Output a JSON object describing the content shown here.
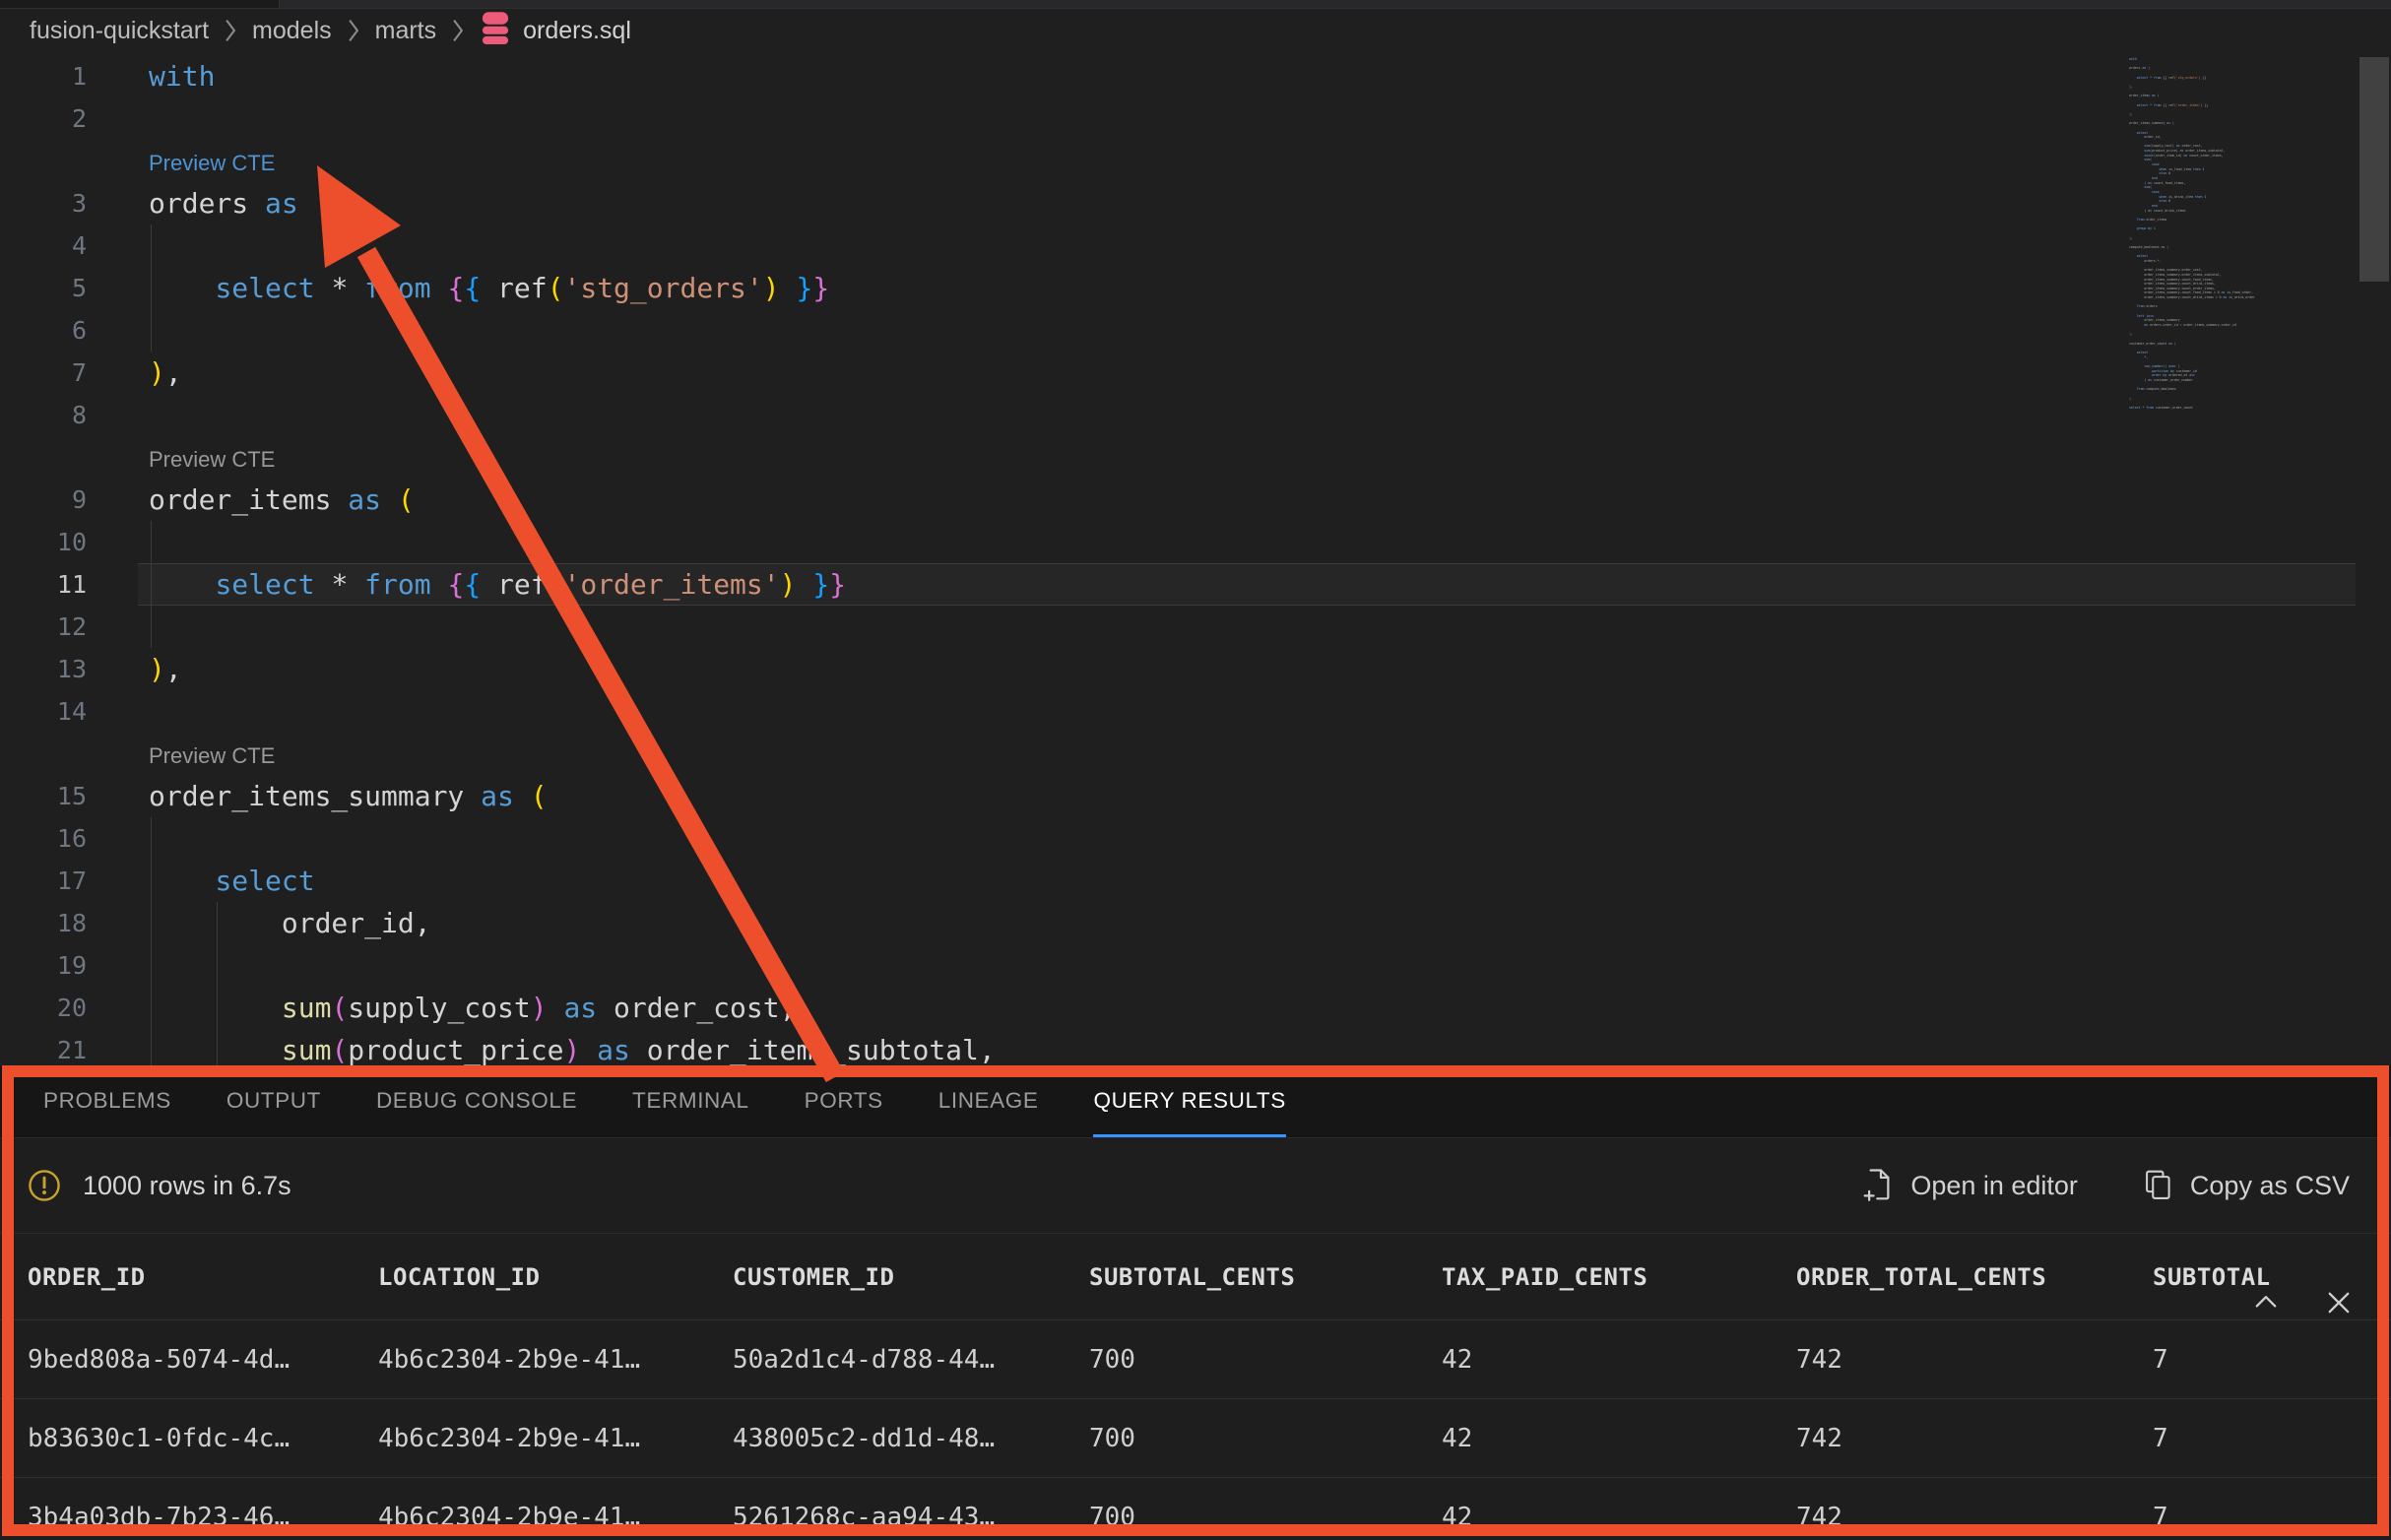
{
  "breadcrumb": {
    "segments": [
      "fusion-quickstart",
      "models",
      "marts"
    ],
    "file": {
      "icon": "database-icon",
      "name": "orders.sql"
    }
  },
  "editor": {
    "codelens_label": "Preview CTE",
    "rows": [
      {
        "type": "code",
        "n": "1",
        "tokens": [
          [
            "with",
            "kw"
          ]
        ]
      },
      {
        "type": "code",
        "n": "2",
        "tokens": []
      },
      {
        "type": "lens",
        "hover": true
      },
      {
        "type": "code",
        "n": "3",
        "tokens": [
          [
            "orders ",
            "id"
          ],
          [
            "as",
            "kw"
          ],
          [
            " ",
            "id"
          ],
          [
            "(",
            "b1"
          ]
        ]
      },
      {
        "type": "code",
        "n": "4",
        "guides": [
          0
        ],
        "tokens": []
      },
      {
        "type": "code",
        "n": "5",
        "guides": [
          0
        ],
        "tokens": [
          [
            "    ",
            "id"
          ],
          [
            "select",
            "kw"
          ],
          [
            " * ",
            "id"
          ],
          [
            "from",
            "kw"
          ],
          [
            " ",
            "id"
          ],
          [
            "{",
            "b2"
          ],
          [
            "{",
            "b3"
          ],
          [
            " ref",
            "id"
          ],
          [
            "(",
            "b1"
          ],
          [
            "'stg_orders'",
            "str"
          ],
          [
            ")",
            "b1"
          ],
          [
            " ",
            "id"
          ],
          [
            "}",
            "b3"
          ],
          [
            "}",
            "b2"
          ]
        ]
      },
      {
        "type": "code",
        "n": "6",
        "guides": [
          0
        ],
        "tokens": []
      },
      {
        "type": "code",
        "n": "7",
        "tokens": [
          [
            ")",
            "b1"
          ],
          [
            ",",
            "id"
          ]
        ]
      },
      {
        "type": "code",
        "n": "8",
        "tokens": []
      },
      {
        "type": "lens"
      },
      {
        "type": "code",
        "n": "9",
        "tokens": [
          [
            "order_items ",
            "id"
          ],
          [
            "as",
            "kw"
          ],
          [
            " ",
            "id"
          ],
          [
            "(",
            "b1"
          ]
        ]
      },
      {
        "type": "code",
        "n": "10",
        "guides": [
          0
        ],
        "tokens": []
      },
      {
        "type": "code",
        "n": "11",
        "current": true,
        "guides": [
          0
        ],
        "tokens": [
          [
            "    ",
            "id"
          ],
          [
            "select",
            "kw"
          ],
          [
            " * ",
            "id"
          ],
          [
            "from",
            "kw"
          ],
          [
            " ",
            "id"
          ],
          [
            "{",
            "b2"
          ],
          [
            "{",
            "b3"
          ],
          [
            " ref",
            "id"
          ],
          [
            "(",
            "b1"
          ],
          [
            "'order_items'",
            "str"
          ],
          [
            ")",
            "b1"
          ],
          [
            " ",
            "id"
          ],
          [
            "}",
            "b3"
          ],
          [
            "}",
            "b2"
          ]
        ]
      },
      {
        "type": "code",
        "n": "12",
        "guides": [
          0
        ],
        "tokens": []
      },
      {
        "type": "code",
        "n": "13",
        "tokens": [
          [
            ")",
            "b1"
          ],
          [
            ",",
            "id"
          ]
        ]
      },
      {
        "type": "code",
        "n": "14",
        "tokens": []
      },
      {
        "type": "lens"
      },
      {
        "type": "code",
        "n": "15",
        "tokens": [
          [
            "order_items_summary ",
            "id"
          ],
          [
            "as",
            "kw"
          ],
          [
            " ",
            "id"
          ],
          [
            "(",
            "b1"
          ]
        ]
      },
      {
        "type": "code",
        "n": "16",
        "guides": [
          0
        ],
        "tokens": []
      },
      {
        "type": "code",
        "n": "17",
        "guides": [
          0
        ],
        "tokens": [
          [
            "    ",
            "id"
          ],
          [
            "select",
            "kw"
          ]
        ]
      },
      {
        "type": "code",
        "n": "18",
        "guides": [
          0,
          4
        ],
        "tokens": [
          [
            "        order_id,",
            "id"
          ]
        ]
      },
      {
        "type": "code",
        "n": "19",
        "guides": [
          0,
          4
        ],
        "tokens": []
      },
      {
        "type": "code",
        "n": "20",
        "guides": [
          0,
          4
        ],
        "tokens": [
          [
            "        ",
            "id"
          ],
          [
            "sum",
            "fn"
          ],
          [
            "(",
            "b2"
          ],
          [
            "supply_cost",
            "id"
          ],
          [
            ")",
            "b2"
          ],
          [
            " ",
            "id"
          ],
          [
            "as",
            "kw"
          ],
          [
            " order_cost,",
            "id"
          ]
        ]
      },
      {
        "type": "code",
        "n": "21",
        "guides": [
          0,
          4
        ],
        "tokens": [
          [
            "        ",
            "id"
          ],
          [
            "sum",
            "fn"
          ],
          [
            "(",
            "b2"
          ],
          [
            "product_price",
            "id"
          ],
          [
            ")",
            "b2"
          ],
          [
            " ",
            "id"
          ],
          [
            "as",
            "kw"
          ],
          [
            " order_items_subtotal,",
            "id"
          ]
        ]
      }
    ],
    "minimap_lines": [
      "with",
      "",
      "orders as (",
      "",
      "    select * from {{ ref('stg_orders') }}",
      "",
      "),",
      "",
      "order_items as (",
      "",
      "    select * from {{ ref('order_items') }}",
      "",
      "),",
      "",
      "order_items_summary as (",
      "",
      "    select",
      "        order_id,",
      "",
      "        sum(supply_cost) as order_cost,",
      "        sum(product_price) as order_items_subtotal,",
      "        count(order_item_id) as count_order_items,",
      "        sum(",
      "            case",
      "                when is_food_item then 1",
      "                else 0",
      "            end",
      "        ) as count_food_items,",
      "        sum(",
      "            case",
      "                when is_drink_item then 1",
      "                else 0",
      "            end",
      "        ) as count_drink_items",
      "",
      "    from order_items",
      "",
      "    group by 1",
      "",
      "),",
      "",
      "compute_booleans as (",
      "",
      "    select",
      "        orders.*,",
      "",
      "        order_items_summary.order_cost,",
      "        order_items_summary.order_items_subtotal,",
      "        order_items_summary.count_food_items,",
      "        order_items_summary.count_drink_items,",
      "        order_items_summary.count_order_items,",
      "        order_items_summary.count_food_items > 0 as is_food_order,",
      "        order_items_summary.count_drink_items > 0 as is_drink_order",
      "",
      "    from orders",
      "",
      "    left join",
      "        order_items_summary",
      "        on orders.order_id = order_items_summary.order_id",
      "",
      "),",
      "",
      "customer_order_count as (",
      "",
      "    select",
      "        *,",
      "",
      "        row_number() over (",
      "            partition by customer_id",
      "            order by ordered_at asc",
      "        ) as customer_order_number",
      "",
      "    from compute_booleans",
      "",
      ")",
      "",
      "select * from customer_order_count"
    ]
  },
  "panel": {
    "tabs": [
      {
        "label": "PROBLEMS"
      },
      {
        "label": "OUTPUT"
      },
      {
        "label": "DEBUG CONSOLE"
      },
      {
        "label": "TERMINAL"
      },
      {
        "label": "PORTS"
      },
      {
        "label": "LINEAGE"
      },
      {
        "label": "QUERY RESULTS",
        "active": true
      }
    ],
    "controls": [
      {
        "icon": "chevron-up-icon"
      },
      {
        "icon": "close-icon"
      }
    ],
    "status": {
      "icon": "warning-circle-icon",
      "text": "1000 rows in 6.7s"
    },
    "actions": [
      {
        "icon": "file-plus-icon",
        "label": "Open in editor"
      },
      {
        "icon": "copy-icon",
        "label": "Copy as CSV"
      }
    ],
    "results": {
      "columns": [
        "ORDER_ID",
        "LOCATION_ID",
        "CUSTOMER_ID",
        "SUBTOTAL_CENTS",
        "TAX_PAID_CENTS",
        "ORDER_TOTAL_CENTS",
        "SUBTOTAL"
      ],
      "rows": [
        [
          "9bed808a-5074-4d…",
          "4b6c2304-2b9e-41…",
          "50a2d1c4-d788-44…",
          "700",
          "42",
          "742",
          "7"
        ],
        [
          "b83630c1-0fdc-4c…",
          "4b6c2304-2b9e-41…",
          "438005c2-dd1d-48…",
          "700",
          "42",
          "742",
          "7"
        ],
        [
          "3b4a03db-7b23-46…",
          "4b6c2304-2b9e-41…",
          "5261268c-aa94-43…",
          "700",
          "42",
          "742",
          "7"
        ]
      ]
    }
  },
  "colors": {
    "annotation": "#ED4F2C",
    "keyword": "#569CD6",
    "string": "#CE9178",
    "bracket1": "#FFD700",
    "bracket2": "#DA70D6",
    "bracket3": "#179FFF",
    "function": "#DCDCAA",
    "text": "#D4D4D4",
    "codelens": "#999999",
    "codelens_link": "#4E94D2",
    "tab_underline": "#3794FF",
    "warning": "#C9A227",
    "file_icon": "#EE5B7A"
  }
}
